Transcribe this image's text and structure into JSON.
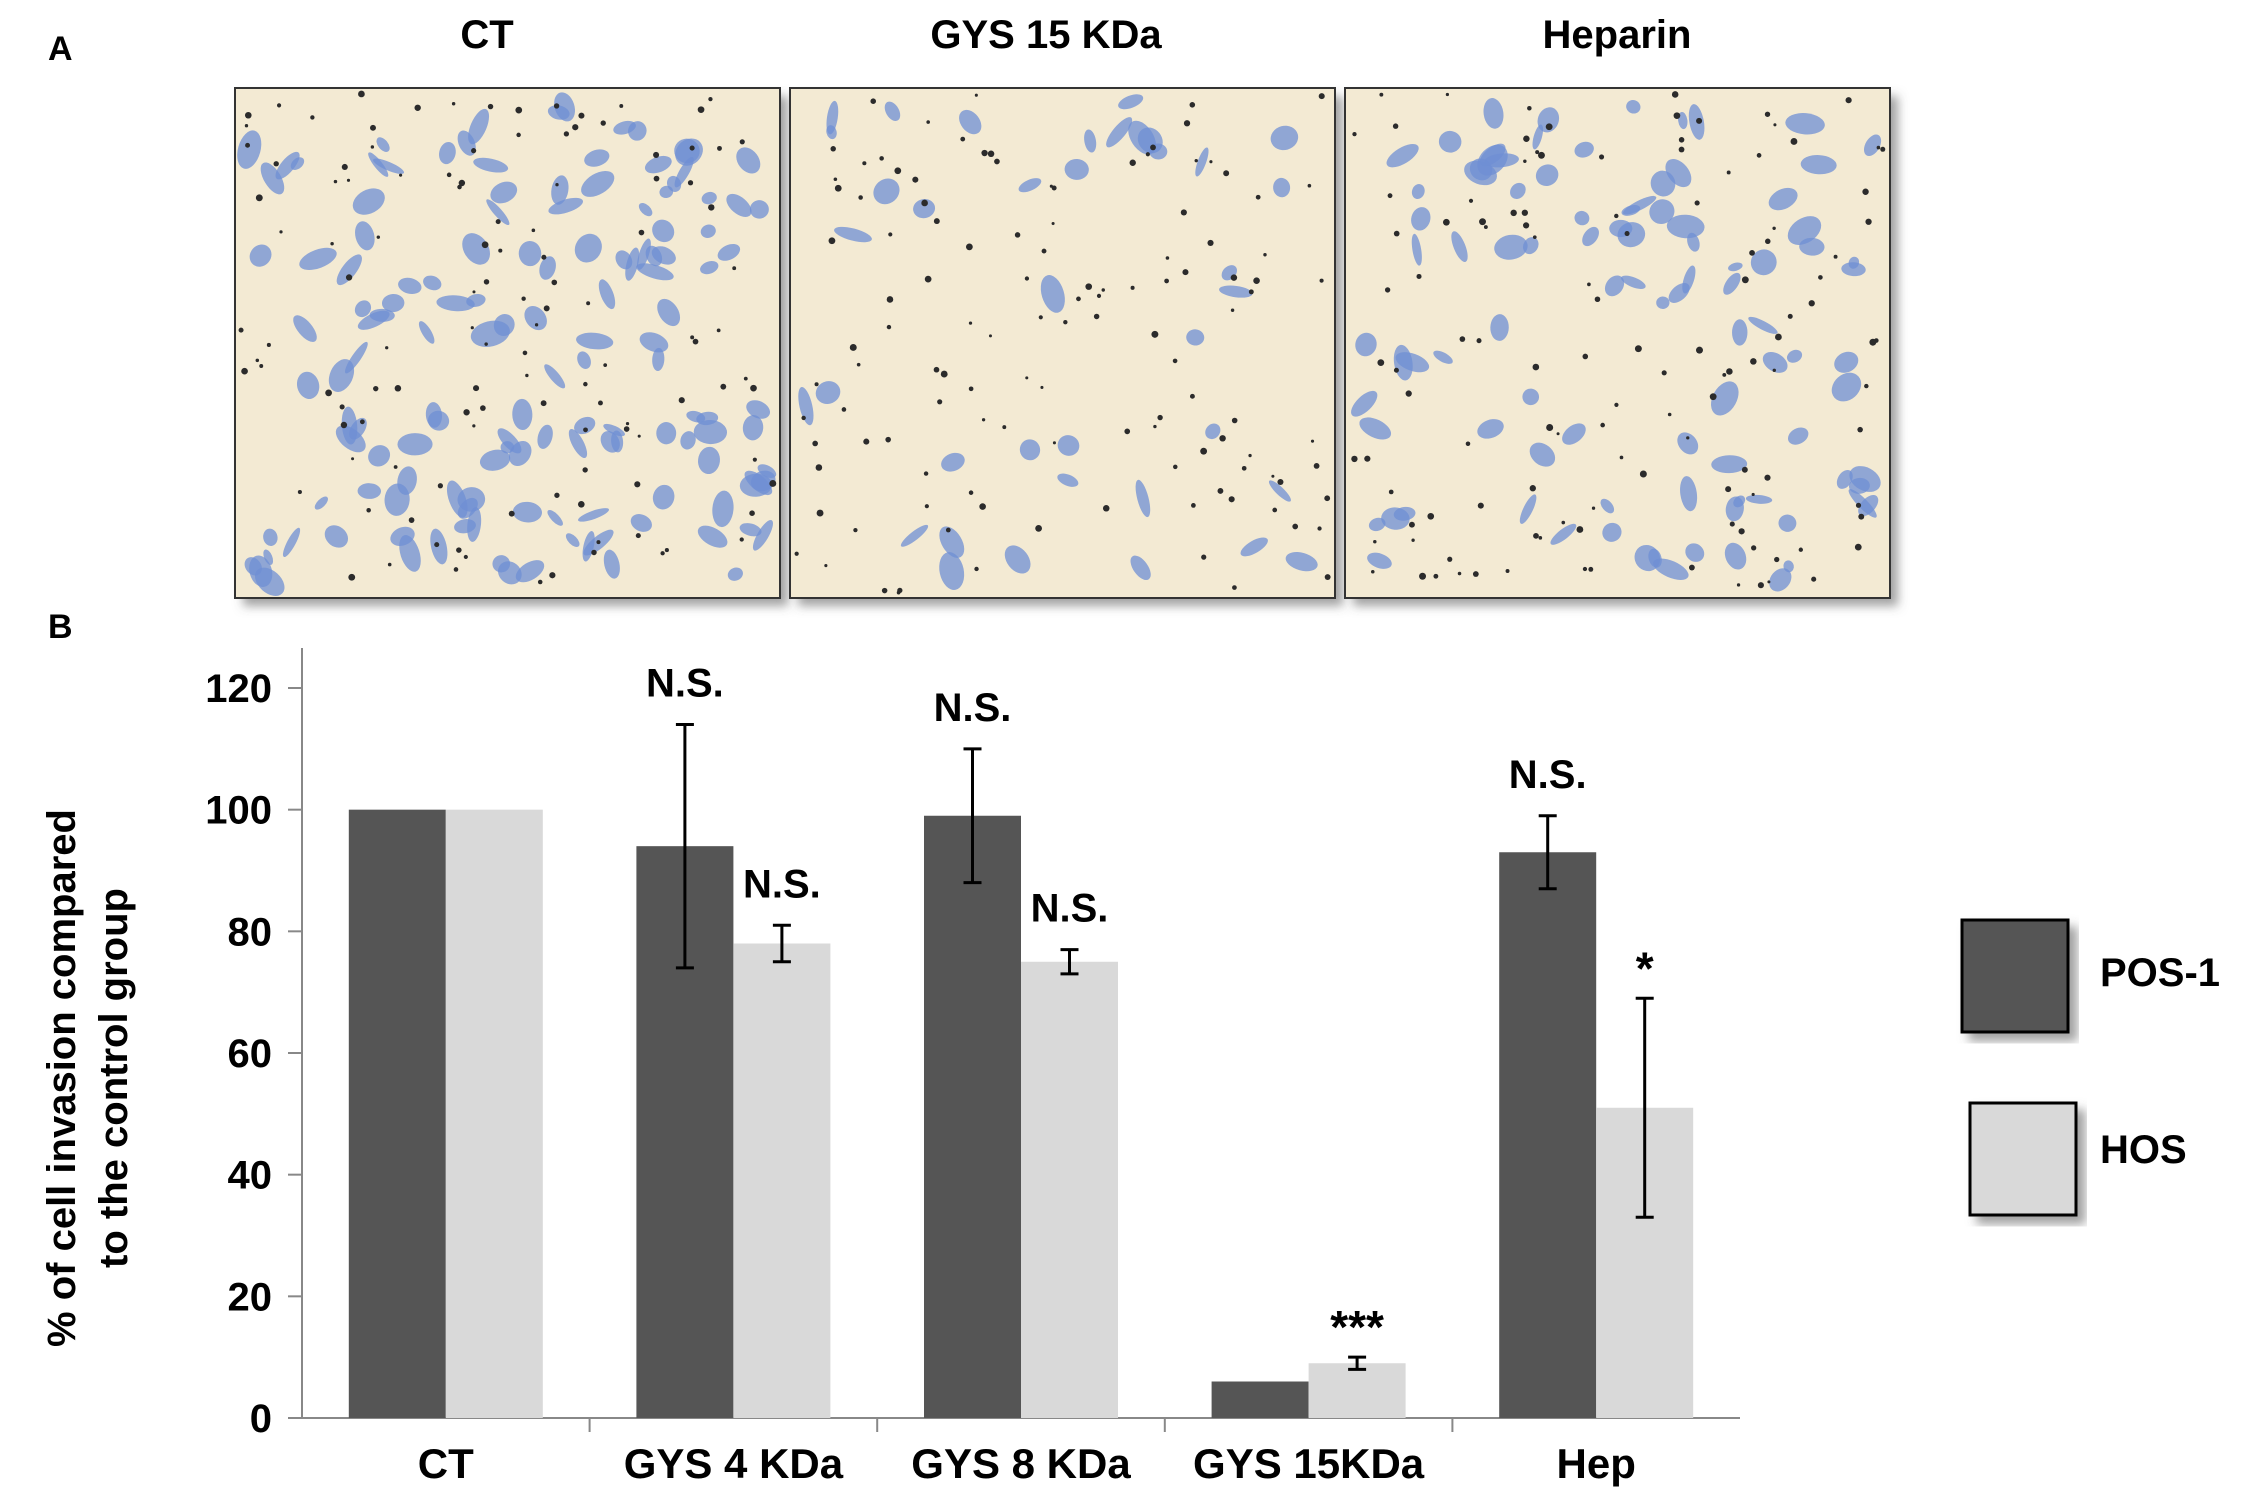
{
  "panel_a": {
    "label": "A",
    "images": [
      {
        "title": "CT",
        "cell_density": "high"
      },
      {
        "title": "GYS 15 KDa",
        "cell_density": "low"
      },
      {
        "title": "Heparin",
        "cell_density": "medium"
      }
    ],
    "colors": {
      "background": "#f3ead3",
      "cell": "#6f8fd4",
      "debris": "#2b2b2b"
    }
  },
  "chart_data": {
    "type": "bar",
    "panel_label": "B",
    "categories": [
      "CT",
      "GYS 4 KDa",
      "GYS 8 KDa",
      "GYS 15KDa",
      "Hep"
    ],
    "ylabel": [
      "% of cell invasion compared",
      "to the control group"
    ],
    "xlabel": "",
    "ylim": [
      0,
      120
    ],
    "yticks": [
      0,
      20,
      40,
      60,
      80,
      100,
      120
    ],
    "grid": false,
    "legend_position": "right",
    "series": [
      {
        "name": "POS-1",
        "color": "#555555",
        "values": [
          100,
          94,
          99,
          6,
          93
        ],
        "errors": [
          null,
          20,
          11,
          null,
          6
        ],
        "annotations": [
          "",
          "N.S.",
          "N.S.",
          "",
          "N.S."
        ]
      },
      {
        "name": "HOS",
        "color": "#d9d9d9",
        "values": [
          100,
          78,
          75,
          9,
          51
        ],
        "errors": [
          null,
          3,
          2,
          1,
          18
        ],
        "annotations": [
          "",
          "N.S.",
          "N.S.",
          "***",
          "*"
        ]
      }
    ]
  }
}
